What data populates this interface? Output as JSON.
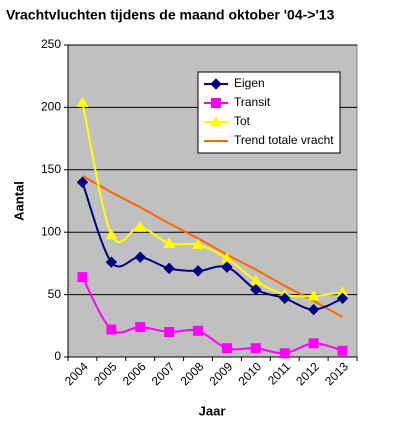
{
  "chart_data": {
    "type": "line",
    "title": "Vrachtvluchten tijdens de maand oktober '04->'13",
    "x_label": "Jaar",
    "y_label": "Aantal",
    "categories": [
      "2004",
      "2005",
      "2006",
      "2007",
      "2008",
      "2009",
      "2010",
      "2011",
      "2012",
      "2013"
    ],
    "series": [
      {
        "name": "Eigen",
        "color": "#000080",
        "marker": "diamond",
        "values": [
          140,
          76,
          80,
          71,
          69,
          72,
          54,
          47,
          38,
          47
        ]
      },
      {
        "name": "Transit",
        "color": "#ff00ff",
        "marker": "square",
        "values": [
          64,
          22,
          24,
          20,
          21,
          7,
          7,
          3,
          11,
          5
        ]
      },
      {
        "name": "Tot",
        "color": "#ffff00",
        "marker": "triangle",
        "values": [
          204,
          98,
          104,
          91,
          90,
          79,
          61,
          50,
          49,
          52
        ]
      },
      {
        "name": "Trend totale vracht",
        "color": "#ff6600",
        "marker": "none",
        "values": [
          145,
          132,
          120,
          107,
          95,
          82,
          70,
          57,
          45,
          32
        ]
      }
    ],
    "ylim": [
      0,
      250
    ],
    "yticks": [
      0,
      50,
      100,
      150,
      200,
      250
    ],
    "grid": true,
    "legend": "upper right"
  }
}
